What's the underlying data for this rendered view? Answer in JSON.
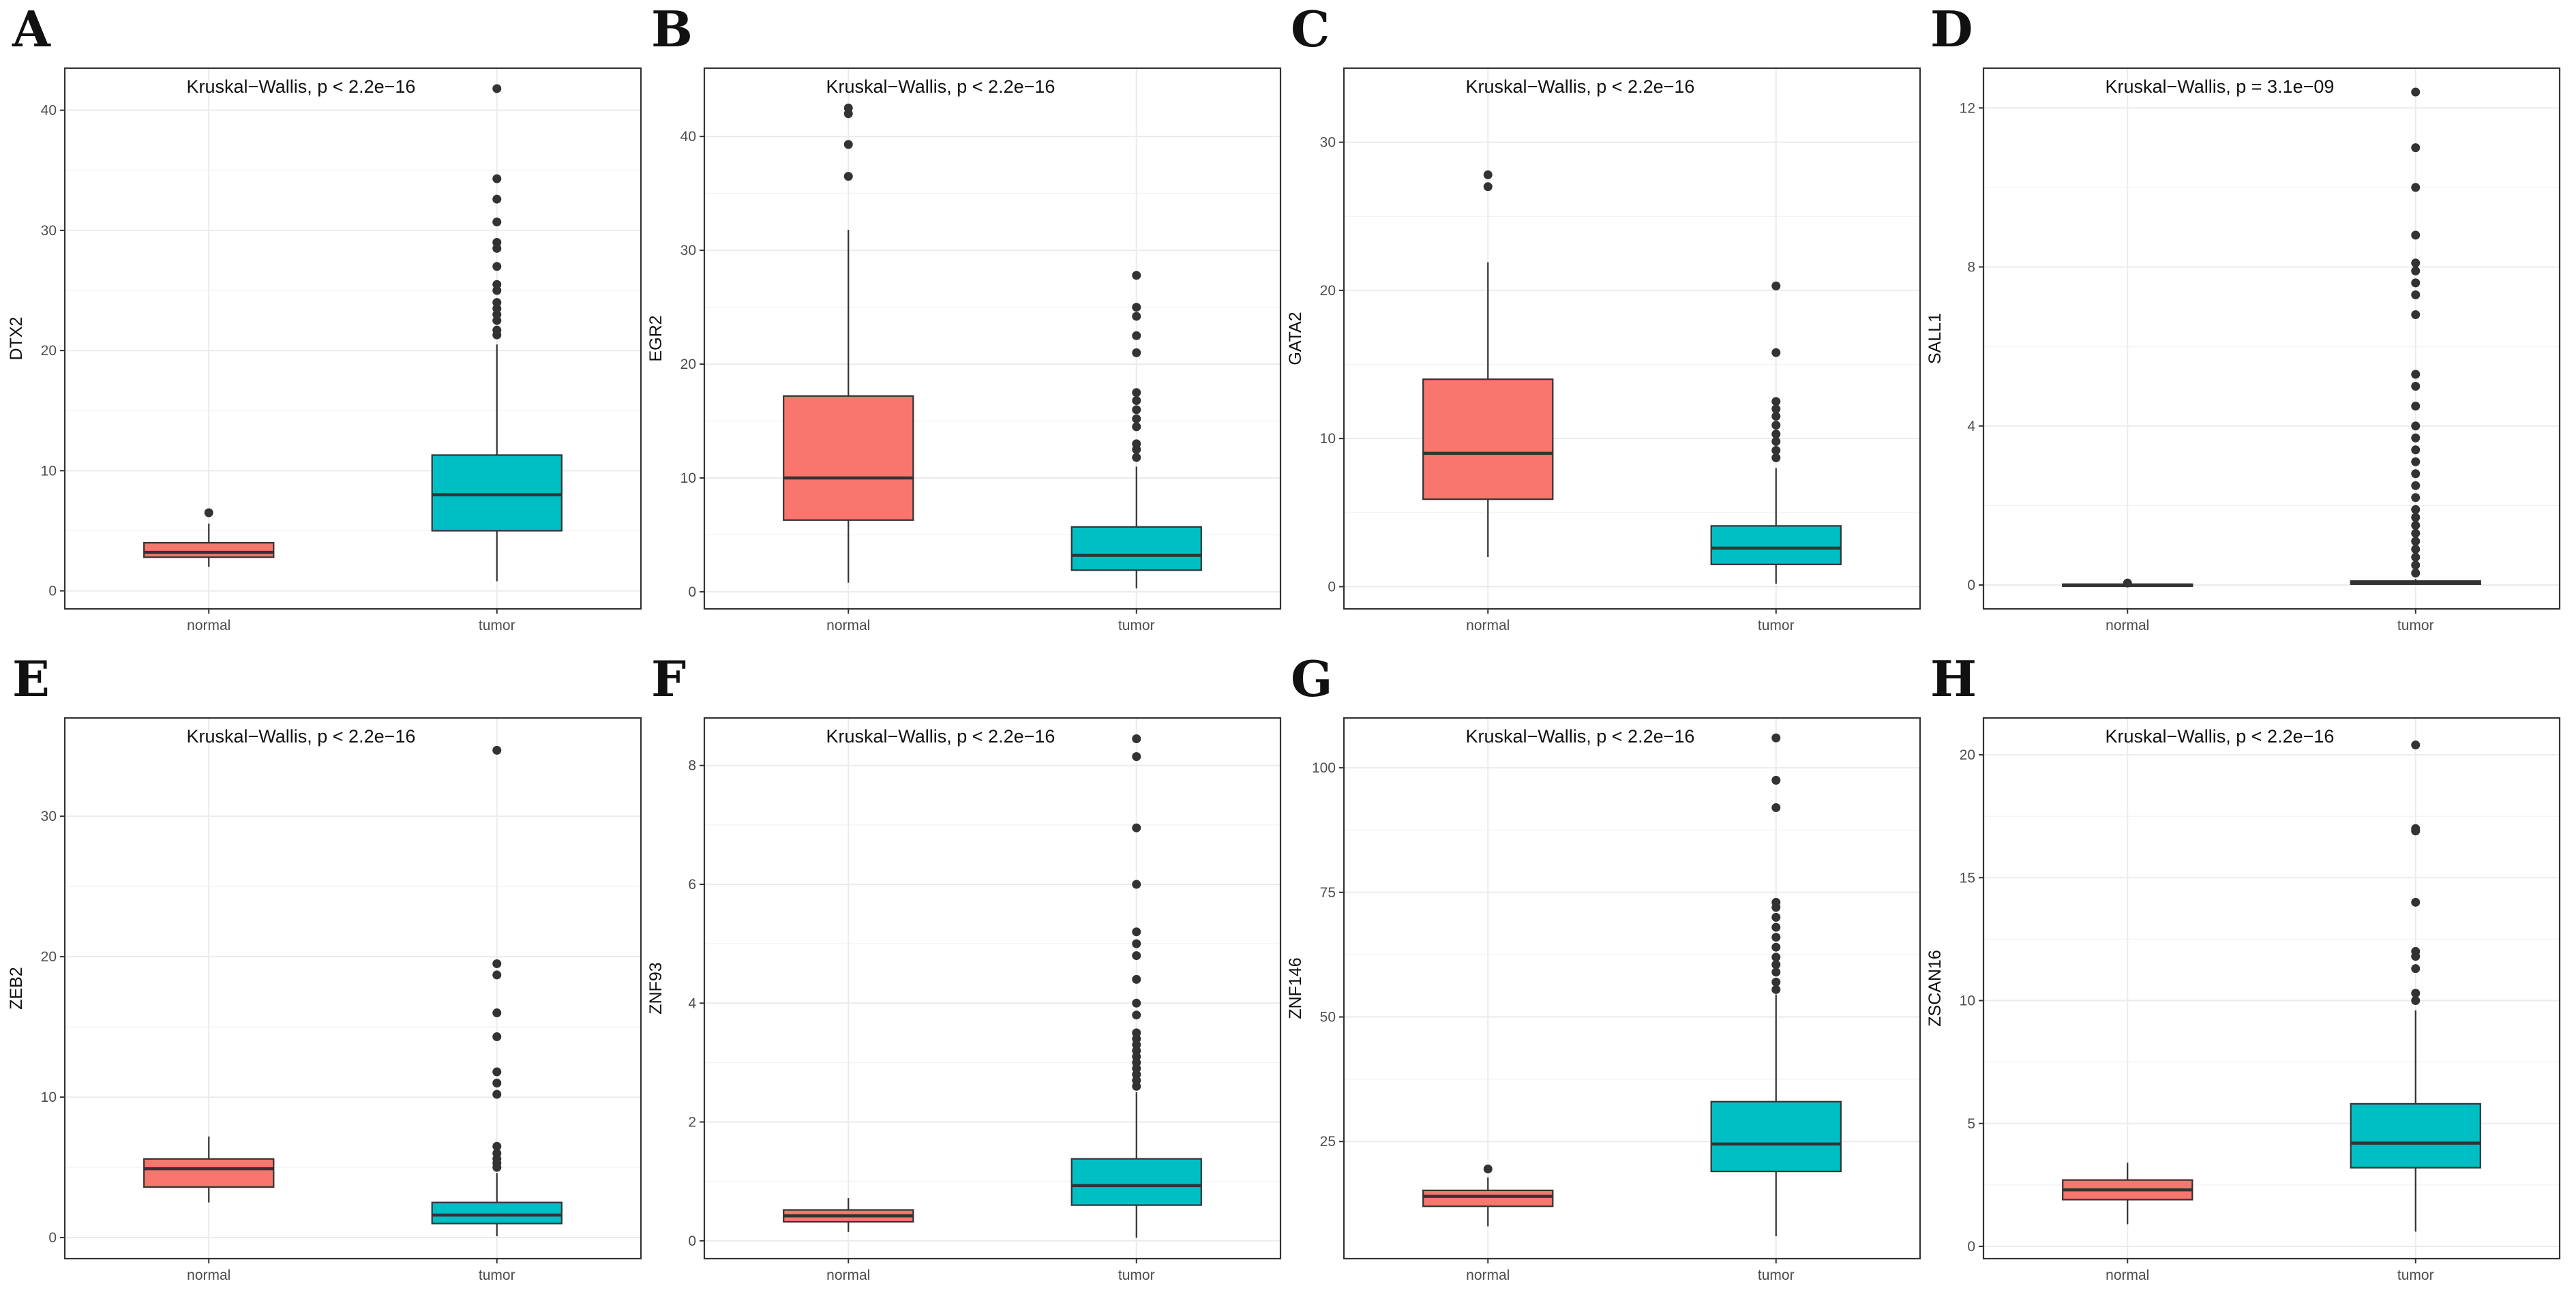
{
  "chart_data": [
    {
      "type": "box",
      "panel": "A",
      "ylabel": "DTX2",
      "annotation": "Kruskal−Wallis, p < 2.2e−16",
      "ylim": [
        -1.5,
        43.5
      ],
      "yticks": [
        0,
        10,
        20,
        30,
        40
      ],
      "categories": [
        "normal",
        "tumor"
      ],
      "colors": [
        "#F8766D",
        "#00BFC4"
      ],
      "boxes": [
        {
          "whisker_low": 2.0,
          "q1": 2.8,
          "median": 3.2,
          "q3": 4.0,
          "whisker_high": 5.6,
          "outliers": [
            6.5
          ]
        },
        {
          "whisker_low": 0.8,
          "q1": 5.0,
          "median": 8.0,
          "q3": 11.3,
          "whisker_high": 20.5,
          "outliers": [
            21.3,
            21.7,
            22.5,
            23.0,
            23.5,
            24.0,
            25.0,
            25.5,
            27.0,
            28.5,
            29.0,
            30.7,
            32.6,
            34.3,
            41.8
          ]
        }
      ]
    },
    {
      "type": "box",
      "panel": "B",
      "ylabel": "EGR2",
      "annotation": "Kruskal−Wallis, p < 2.2e−16",
      "ylim": [
        -1.5,
        46.0
      ],
      "yticks": [
        0,
        10,
        20,
        30,
        40
      ],
      "categories": [
        "normal",
        "tumor"
      ],
      "colors": [
        "#F8766D",
        "#00BFC4"
      ],
      "boxes": [
        {
          "whisker_low": 0.8,
          "q1": 6.3,
          "median": 10.0,
          "q3": 17.2,
          "whisker_high": 31.8,
          "outliers": [
            36.5,
            39.3,
            42.0,
            42.5
          ]
        },
        {
          "whisker_low": 0.3,
          "q1": 1.9,
          "median": 3.2,
          "q3": 5.7,
          "whisker_high": 11.0,
          "outliers": [
            11.8,
            12.5,
            13.0,
            14.5,
            15.2,
            16.0,
            16.8,
            17.5,
            21.0,
            22.5,
            24.2,
            25.0,
            27.8
          ]
        }
      ]
    },
    {
      "type": "box",
      "panel": "C",
      "ylabel": "GATA2",
      "annotation": "Kruskal−Wallis, p < 2.2e−16",
      "ylim": [
        -1.5,
        35.0
      ],
      "yticks": [
        0,
        10,
        20,
        30
      ],
      "categories": [
        "normal",
        "tumor"
      ],
      "colors": [
        "#F8766D",
        "#00BFC4"
      ],
      "boxes": [
        {
          "whisker_low": 2.0,
          "q1": 5.9,
          "median": 9.0,
          "q3": 14.0,
          "whisker_high": 21.9,
          "outliers": [
            27.0,
            27.8
          ]
        },
        {
          "whisker_low": 0.2,
          "q1": 1.5,
          "median": 2.6,
          "q3": 4.1,
          "whisker_high": 8.0,
          "outliers": [
            8.7,
            9.2,
            9.8,
            10.3,
            10.9,
            11.5,
            12.0,
            12.5,
            15.8,
            20.3
          ]
        }
      ]
    },
    {
      "type": "box",
      "panel": "D",
      "ylabel": "SALL1",
      "annotation": "Kruskal−Wallis, p = 3.1e−09",
      "ylim": [
        -0.6,
        13.0
      ],
      "yticks": [
        0,
        4,
        8,
        12
      ],
      "categories": [
        "normal",
        "tumor"
      ],
      "colors": [
        "#F8766D",
        "#00BFC4"
      ],
      "boxes": [
        {
          "whisker_low": 0.0,
          "q1": 0.0,
          "median": 0.0,
          "q3": 0.02,
          "whisker_high": 0.03,
          "outliers": [
            0.05
          ]
        },
        {
          "whisker_low": 0.0,
          "q1": 0.02,
          "median": 0.05,
          "q3": 0.1,
          "whisker_high": 0.15,
          "outliers": [
            0.3,
            0.5,
            0.7,
            0.9,
            1.1,
            1.3,
            1.5,
            1.7,
            1.9,
            2.2,
            2.5,
            2.8,
            3.1,
            3.4,
            3.7,
            4.0,
            4.5,
            5.0,
            5.3,
            6.8,
            7.3,
            7.6,
            7.9,
            8.1,
            8.8,
            10.0,
            11.0,
            12.4
          ]
        }
      ]
    },
    {
      "type": "box",
      "panel": "E",
      "ylabel": "ZEB2",
      "annotation": "Kruskal−Wallis, p < 2.2e−16",
      "ylim": [
        -1.5,
        37.0
      ],
      "yticks": [
        0,
        10,
        20,
        30
      ],
      "categories": [
        "normal",
        "tumor"
      ],
      "colors": [
        "#F8766D",
        "#00BFC4"
      ],
      "boxes": [
        {
          "whisker_low": 2.5,
          "q1": 3.6,
          "median": 4.9,
          "q3": 5.6,
          "whisker_high": 7.2,
          "outliers": []
        },
        {
          "whisker_low": 0.1,
          "q1": 1.0,
          "median": 1.6,
          "q3": 2.5,
          "whisker_high": 4.6,
          "outliers": [
            5.0,
            5.3,
            5.6,
            6.0,
            6.5,
            10.2,
            11.0,
            11.8,
            14.3,
            16.0,
            18.7,
            19.5,
            34.7
          ]
        }
      ]
    },
    {
      "type": "box",
      "panel": "F",
      "ylabel": "ZNF93",
      "annotation": "Kruskal−Wallis, p < 2.2e−16",
      "ylim": [
        -0.3,
        8.8
      ],
      "yticks": [
        0,
        2,
        4,
        6,
        8
      ],
      "categories": [
        "normal",
        "tumor"
      ],
      "colors": [
        "#F8766D",
        "#00BFC4"
      ],
      "boxes": [
        {
          "whisker_low": 0.15,
          "q1": 0.32,
          "median": 0.42,
          "q3": 0.52,
          "whisker_high": 0.72,
          "outliers": []
        },
        {
          "whisker_low": 0.05,
          "q1": 0.6,
          "median": 0.93,
          "q3": 1.38,
          "whisker_high": 2.5,
          "outliers": [
            2.6,
            2.7,
            2.8,
            2.9,
            3.0,
            3.1,
            3.2,
            3.3,
            3.4,
            3.5,
            3.8,
            4.0,
            4.4,
            4.8,
            5.0,
            5.2,
            6.0,
            6.95,
            8.15,
            8.45
          ]
        }
      ]
    },
    {
      "type": "box",
      "panel": "G",
      "ylabel": "ZNF146",
      "annotation": "Kruskal−Wallis, p < 2.2e−16",
      "ylim": [
        1.5,
        110.0
      ],
      "yticks": [
        25,
        50,
        75,
        100
      ],
      "categories": [
        "normal",
        "tumor"
      ],
      "colors": [
        "#F8766D",
        "#00BFC4"
      ],
      "boxes": [
        {
          "whisker_low": 8.0,
          "q1": 12.0,
          "median": 14.0,
          "q3": 15.2,
          "whisker_high": 17.8,
          "outliers": [
            19.5
          ]
        },
        {
          "whisker_low": 6.0,
          "q1": 19.0,
          "median": 24.5,
          "q3": 33.0,
          "whisker_high": 54.5,
          "outliers": [
            55.5,
            57.0,
            59.0,
            60.5,
            62.0,
            64.0,
            66.0,
            68.0,
            70.0,
            72.0,
            73.0,
            92.0,
            97.5,
            106.0
          ]
        }
      ]
    },
    {
      "type": "box",
      "panel": "H",
      "ylabel": "ZSCAN16",
      "annotation": "Kruskal−Wallis, p < 2.2e−16",
      "ylim": [
        -0.5,
        21.5
      ],
      "yticks": [
        0,
        5,
        10,
        15,
        20
      ],
      "categories": [
        "normal",
        "tumor"
      ],
      "colors": [
        "#F8766D",
        "#00BFC4"
      ],
      "boxes": [
        {
          "whisker_low": 0.9,
          "q1": 1.9,
          "median": 2.3,
          "q3": 2.7,
          "whisker_high": 3.4,
          "outliers": []
        },
        {
          "whisker_low": 0.6,
          "q1": 3.2,
          "median": 4.2,
          "q3": 5.8,
          "whisker_high": 9.6,
          "outliers": [
            10.0,
            10.3,
            11.3,
            11.8,
            12.0,
            14.0,
            16.9,
            17.0,
            20.4
          ]
        }
      ]
    }
  ]
}
